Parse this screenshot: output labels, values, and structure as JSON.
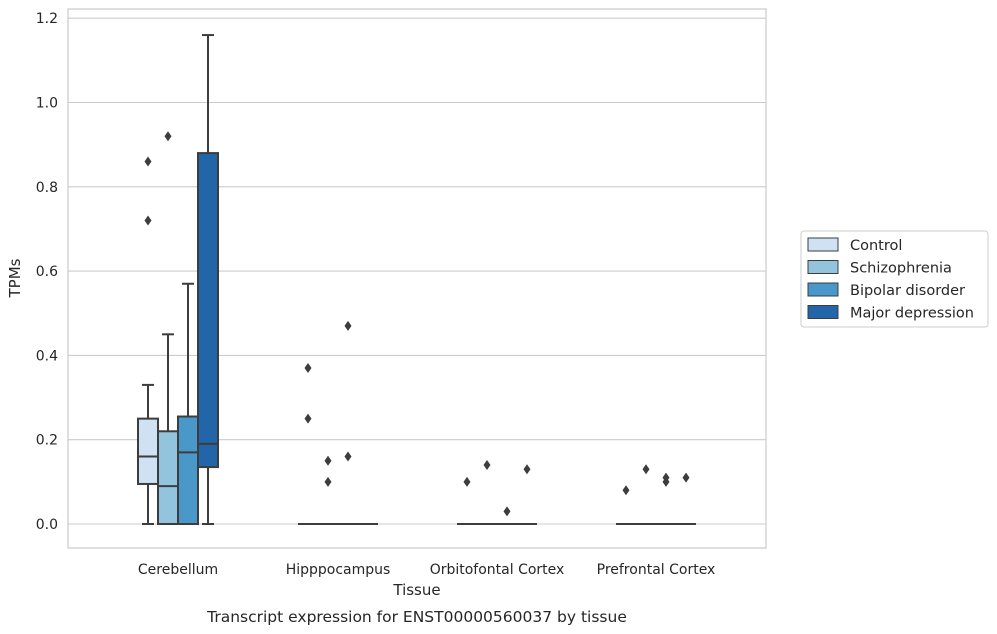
{
  "chart_data": {
    "type": "boxplot",
    "xlabel": "Tissue",
    "ylabel": "TPMs",
    "caption": "Transcript expression for ENST00000560037 by tissue",
    "ylim": [
      -0.055,
      1.225
    ],
    "yticks": [
      0.0,
      0.2,
      0.4,
      0.6,
      0.8,
      1.0,
      1.2
    ],
    "ytick_labels": [
      "0.0",
      "0.2",
      "0.4",
      "0.6",
      "0.8",
      "1.0",
      "1.2"
    ],
    "grid": "horizontal",
    "legend_position": "right, outside plot",
    "categories": [
      "Cerebellum",
      "Hipppocampus",
      "Orbitofontal Cortex",
      "Prefrontal Cortex"
    ],
    "series": [
      {
        "name": "Control",
        "color": "#cfe1f2",
        "boxes": [
          {
            "whislo": 0.0,
            "q1": 0.095,
            "med": 0.16,
            "q3": 0.25,
            "whishi": 0.33,
            "fliers": [
              0.72,
              0.86
            ]
          },
          {
            "whislo": 0.0,
            "q1": 0.0,
            "med": 0.0,
            "q3": 0.0,
            "whishi": 0.0,
            "fliers": [
              0.25,
              0.37
            ]
          },
          {
            "whislo": 0.0,
            "q1": 0.0,
            "med": 0.0,
            "q3": 0.0,
            "whishi": 0.0,
            "fliers": [
              0.1
            ]
          },
          {
            "whislo": 0.0,
            "q1": 0.0,
            "med": 0.0,
            "q3": 0.0,
            "whishi": 0.0,
            "fliers": [
              0.08
            ]
          }
        ]
      },
      {
        "name": "Schizophrenia",
        "color": "#93c4de",
        "boxes": [
          {
            "whislo": 0.0,
            "q1": 0.0,
            "med": 0.09,
            "q3": 0.22,
            "whishi": 0.45,
            "fliers": [
              0.92
            ]
          },
          {
            "whislo": 0.0,
            "q1": 0.0,
            "med": 0.0,
            "q3": 0.0,
            "whishi": 0.0,
            "fliers": [
              0.1,
              0.15
            ]
          },
          {
            "whislo": 0.0,
            "q1": 0.0,
            "med": 0.0,
            "q3": 0.0,
            "whishi": 0.0,
            "fliers": [
              0.14
            ]
          },
          {
            "whislo": 0.0,
            "q1": 0.0,
            "med": 0.0,
            "q3": 0.0,
            "whishi": 0.0,
            "fliers": [
              0.13
            ]
          }
        ]
      },
      {
        "name": "Bipolar disorder",
        "color": "#4a98c9",
        "boxes": [
          {
            "whislo": 0.0,
            "q1": 0.0,
            "med": 0.17,
            "q3": 0.255,
            "whishi": 0.57,
            "fliers": []
          },
          {
            "whislo": 0.0,
            "q1": 0.0,
            "med": 0.0,
            "q3": 0.0,
            "whishi": 0.0,
            "fliers": [
              0.16,
              0.47
            ]
          },
          {
            "whislo": 0.0,
            "q1": 0.0,
            "med": 0.0,
            "q3": 0.0,
            "whishi": 0.0,
            "fliers": [
              0.03
            ]
          },
          {
            "whislo": 0.0,
            "q1": 0.0,
            "med": 0.0,
            "q3": 0.0,
            "whishi": 0.0,
            "fliers": [
              0.1,
              0.11
            ]
          }
        ]
      },
      {
        "name": "Major depression",
        "color": "#2265a8",
        "boxes": [
          {
            "whislo": 0.0,
            "q1": 0.135,
            "med": 0.19,
            "q3": 0.88,
            "whishi": 1.16,
            "fliers": []
          },
          {
            "whislo": 0.0,
            "q1": 0.0,
            "med": 0.0,
            "q3": 0.0,
            "whishi": 0.0,
            "fliers": []
          },
          {
            "whislo": 0.0,
            "q1": 0.0,
            "med": 0.0,
            "q3": 0.0,
            "whishi": 0.0,
            "fliers": [
              0.13
            ]
          },
          {
            "whislo": 0.0,
            "q1": 0.0,
            "med": 0.0,
            "q3": 0.0,
            "whishi": 0.0,
            "fliers": [
              0.11
            ]
          }
        ]
      }
    ]
  }
}
